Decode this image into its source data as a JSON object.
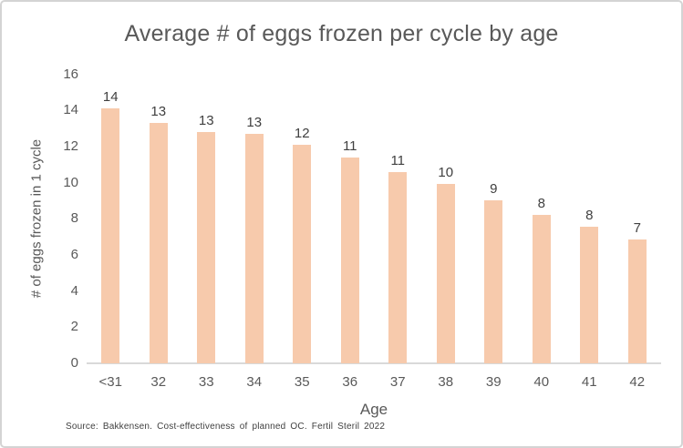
{
  "chart_data": {
    "type": "bar",
    "title": "Average # of eggs frozen per cycle by age",
    "xlabel": "Age",
    "ylabel": "# of eggs frozen in 1 cycle",
    "categories": [
      "<31",
      "32",
      "33",
      "34",
      "35",
      "36",
      "37",
      "38",
      "39",
      "40",
      "41",
      "42"
    ],
    "values": [
      14.1,
      13.3,
      12.8,
      12.7,
      12.1,
      11.4,
      10.6,
      9.95,
      9.0,
      8.2,
      7.55,
      6.85
    ],
    "bar_labels": [
      "14",
      "13",
      "13",
      "13",
      "12",
      "11",
      "11",
      "10",
      "9",
      "8",
      "8",
      "7"
    ],
    "ylim": [
      0,
      16
    ],
    "yticks": [
      0,
      2,
      4,
      6,
      8,
      10,
      12,
      14,
      16
    ],
    "grid": false,
    "legend": "none",
    "source": "Source: Bakkensen. Cost-effectiveness of planned OC. Fertil Steril 2022",
    "colors": {
      "bar_fill": "#F7CAAC",
      "axis_line": "#D9D9D9",
      "title_text": "#595959",
      "tick_text": "#595959",
      "data_label_text": "#404040",
      "source_text": "#3F3F3F",
      "border": "#D4D4D4",
      "background": "#FFFFFF"
    }
  }
}
